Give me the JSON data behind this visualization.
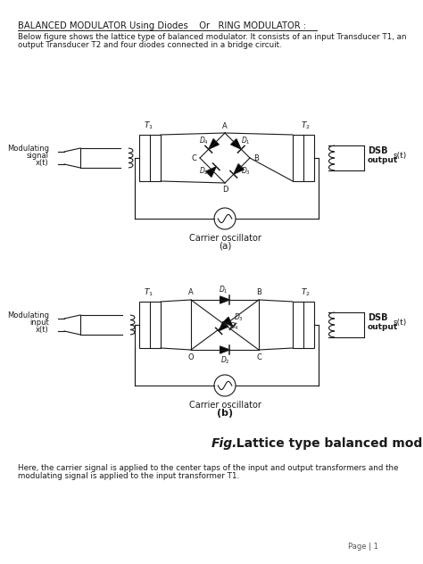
{
  "title": "BALANCED MODULATOR Using Diodes    Or   RING MODULATOR :",
  "intro_line1": "Below figure shows the lattice type of balanced modulator. It consists of an input Transducer T1, an",
  "intro_line2": "output Transducer T2 and four diodes connected in a bridge circuit.",
  "fig_caption_italic": "Fig.",
  "fig_caption_bold": "  Lattice type balanced modulator",
  "bottom_line1": "Here, the carrier signal is applied to the center taps of the input and output transformers and the",
  "bottom_line2": "modulating signal is applied to the input transformer T1.",
  "page_label": "Page | 1",
  "bg_color": "#ffffff",
  "text_color": "#111111",
  "diagram_a_label": "(a)",
  "diagram_b_label": "(b)",
  "carrier_label": "Carrier oscillator"
}
